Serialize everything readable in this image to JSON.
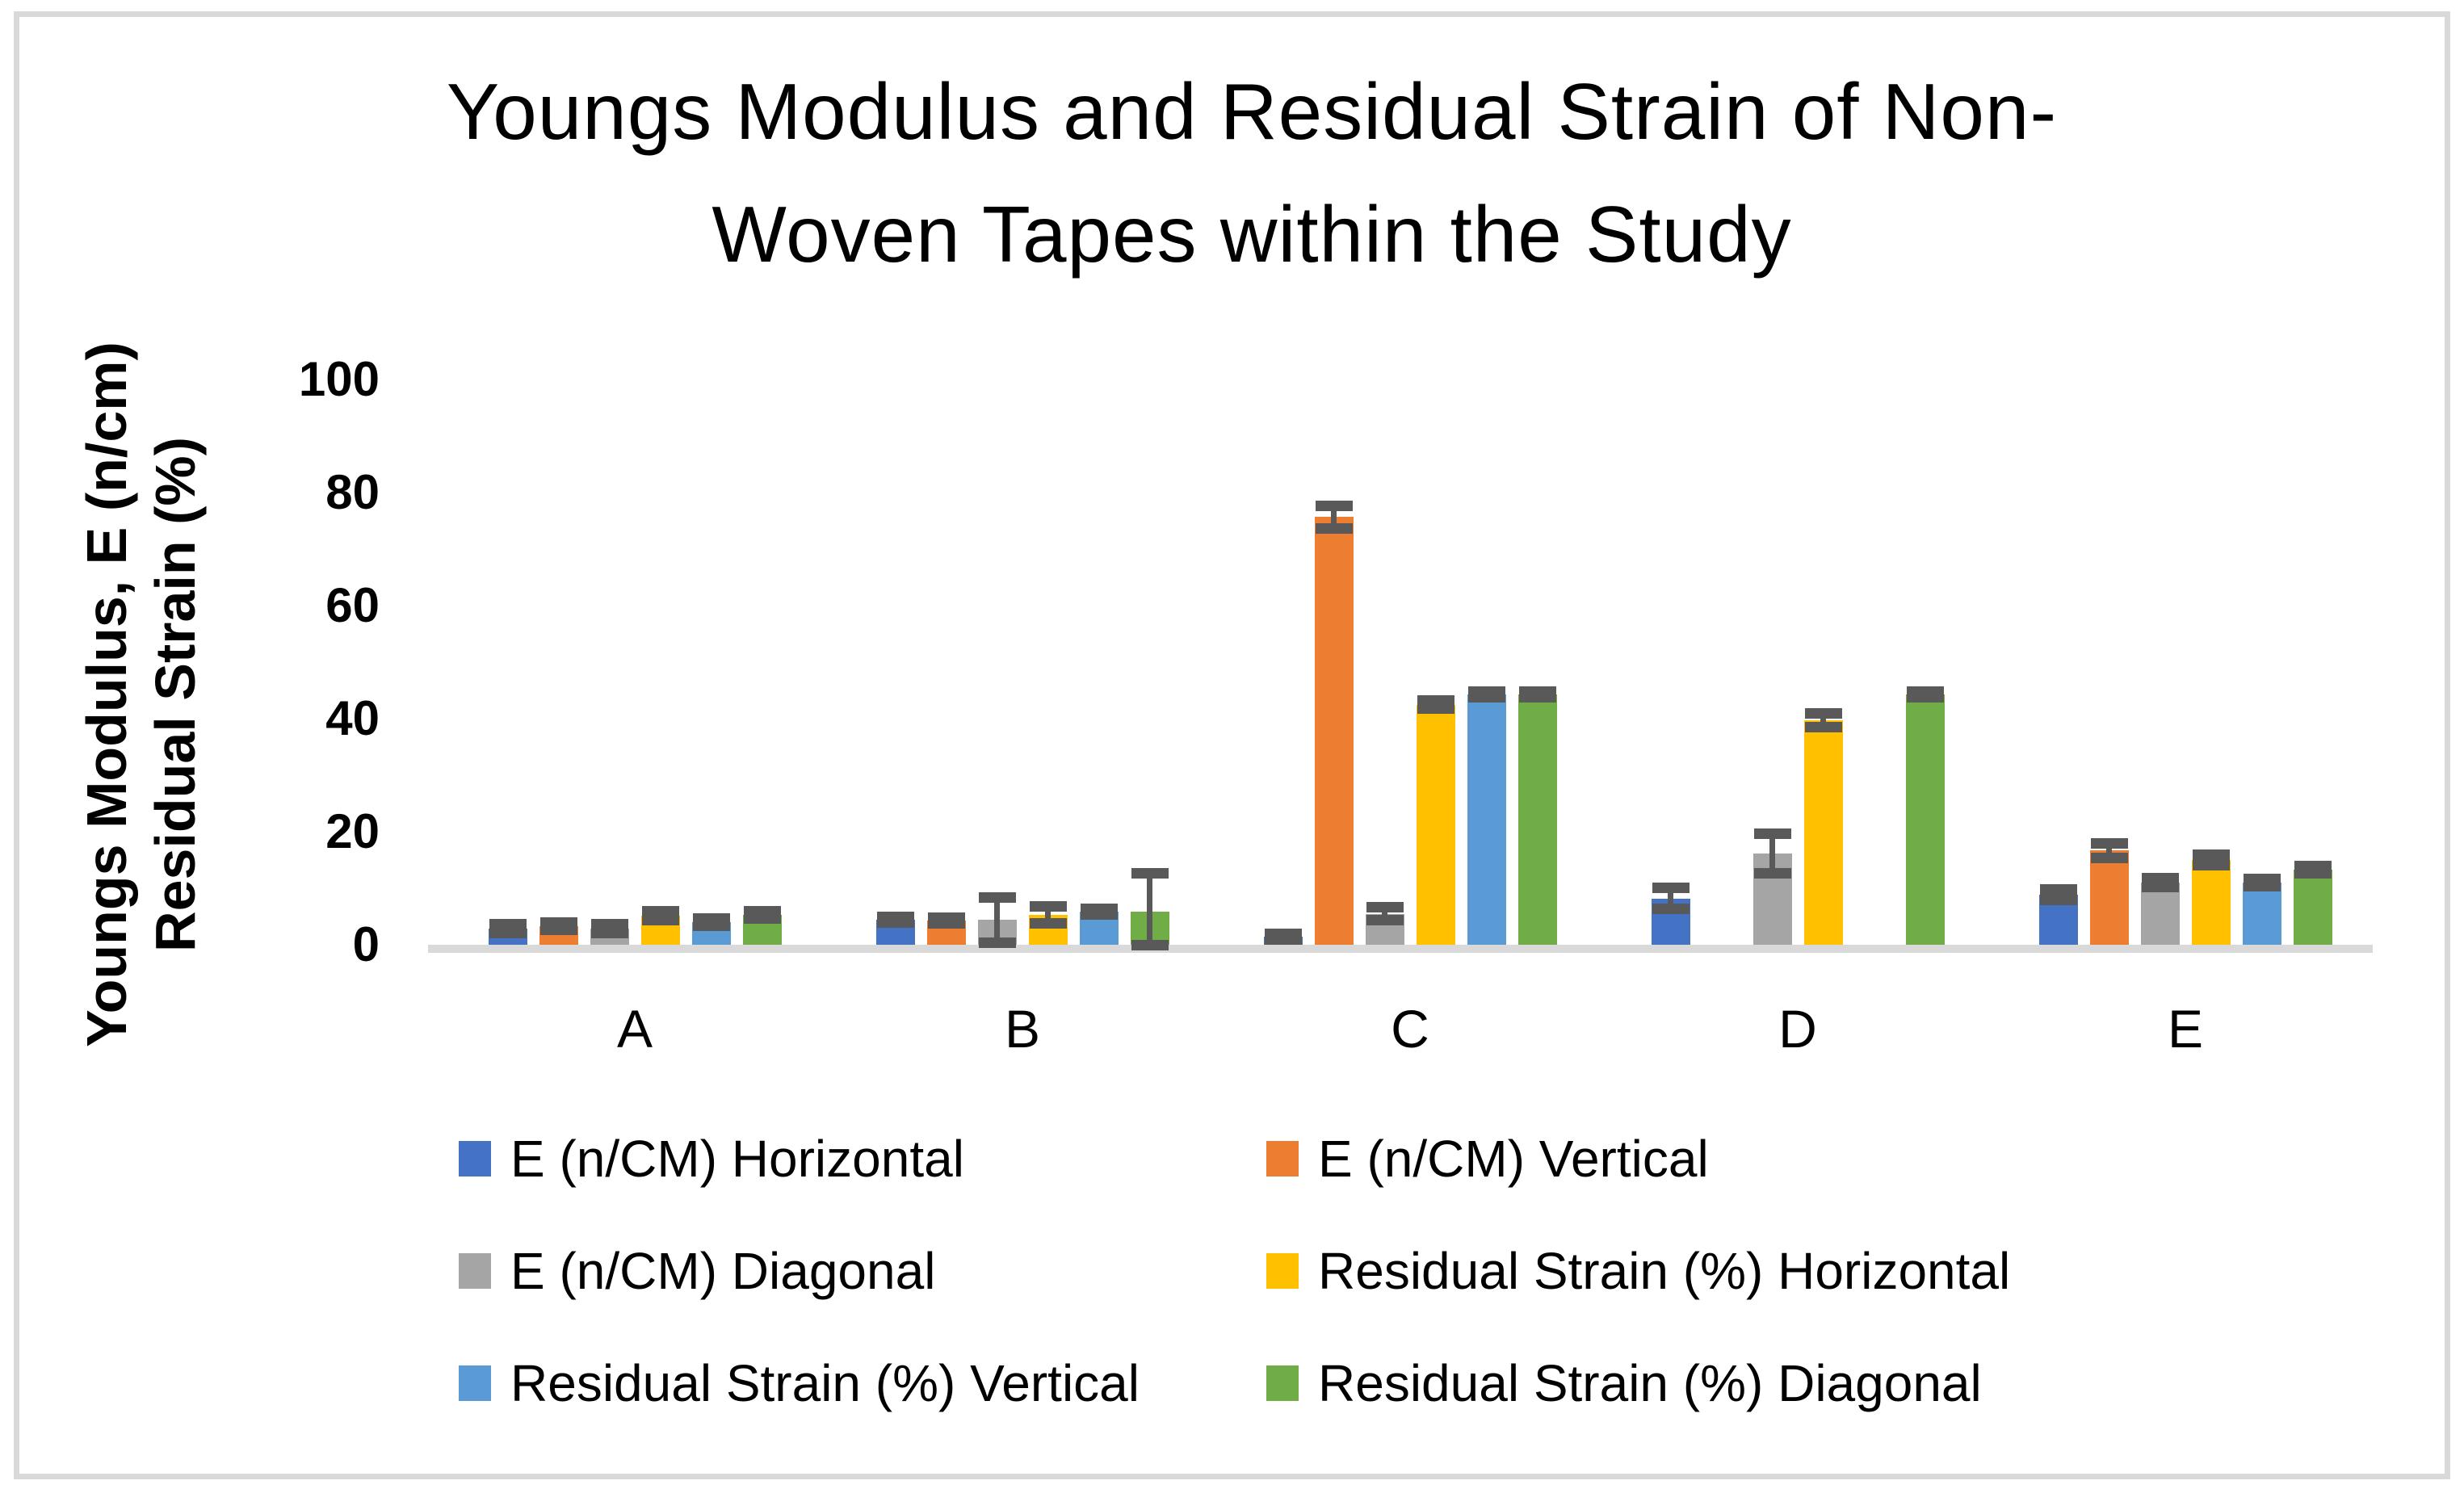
{
  "title": {
    "line1": "Youngs Modulus and Residual Strain of Non-",
    "line2": "Woven Tapes within the Study"
  },
  "y_axis": {
    "label_line1": "Youngs Modulus, E (n/cm)",
    "label_line2": "Residual Strain (%)",
    "ticks": [
      "100",
      "80",
      "60",
      "40",
      "20",
      "0"
    ]
  },
  "x_axis": {
    "categories": [
      "A",
      "B",
      "C",
      "D",
      "E"
    ]
  },
  "colors": {
    "frame_border": "#d9d9d9",
    "axis_line": "#d9d9d9",
    "error_bar": "#595959",
    "text": "#000000"
  },
  "chart_data": {
    "type": "bar",
    "title": "Youngs Modulus and Residual Strain of Non-Woven Tapes within the Study",
    "ylabel": "Youngs Modulus, E (n/cm) Residual Strain (%)",
    "xlabel": "",
    "ylim": [
      0,
      100
    ],
    "y_tick_step": 20,
    "grid": false,
    "legend_position": "bottom",
    "error_bars": true,
    "categories": [
      "A",
      "B",
      "C",
      "D",
      "E"
    ],
    "series": [
      {
        "name": "E (n/CM) Horizontal",
        "color": "#4472C4",
        "values": [
          2.9,
          4.4,
          1.4,
          8.2,
          8.9
        ],
        "errors": [
          0.8,
          0.5,
          0.5,
          1.9,
          0.9
        ]
      },
      {
        "name": "E (n/CM) Vertical",
        "color": "#ED7D31",
        "values": [
          3.3,
          4.3,
          75.7,
          0,
          16.7
        ],
        "errors": [
          0.6,
          0.5,
          2.0,
          0,
          1.3
        ]
      },
      {
        "name": "E (n/CM) Diagonal",
        "color": "#A5A5A5",
        "values": [
          2.9,
          4.4,
          5.5,
          16.2,
          11.0
        ],
        "errors": [
          0.8,
          4.0,
          1.2,
          3.5,
          0.8
        ]
      },
      {
        "name": "Residual Strain (%) Horizontal",
        "color": "#FFC000",
        "values": [
          5.2,
          5.3,
          42.5,
          39.7,
          15.0
        ],
        "errors": [
          0.8,
          1.5,
          0.7,
          1.2,
          0.9
        ]
      },
      {
        "name": "Residual Strain (%) Vertical",
        "color": "#5B9BD5",
        "values": [
          4.0,
          5.9,
          44.3,
          0,
          11.0
        ],
        "errors": [
          0.7,
          0.5,
          0.5,
          0,
          0.7
        ]
      },
      {
        "name": "Residual Strain (%) Diagonal",
        "color": "#70AD47",
        "values": [
          5.3,
          5.9,
          44.3,
          44.3,
          13.3
        ],
        "errors": [
          0.7,
          6.8,
          0.5,
          0.5,
          0.6
        ]
      }
    ]
  }
}
